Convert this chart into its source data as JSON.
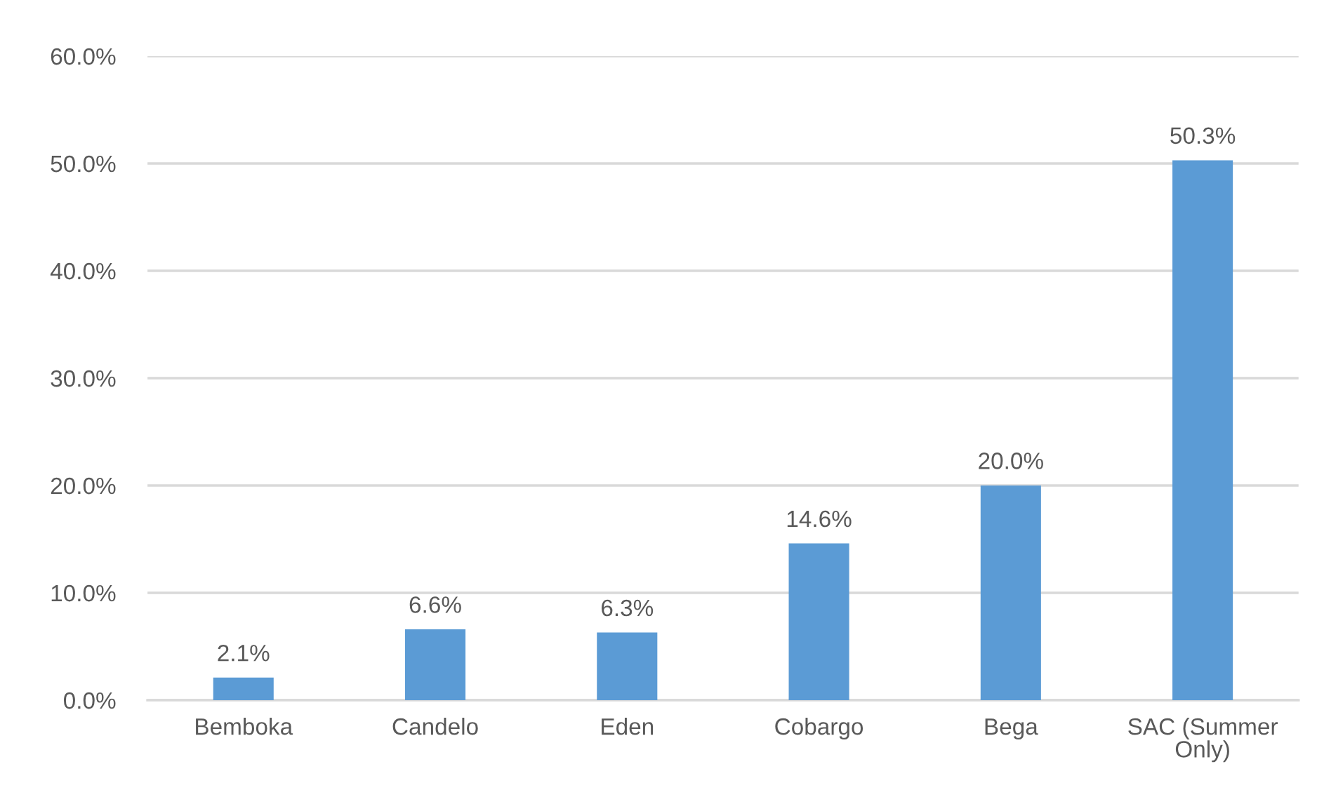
{
  "chart_data": {
    "type": "bar",
    "categories": [
      "Bemboka",
      "Candelo",
      "Eden",
      "Cobargo",
      "Bega",
      "SAC (Summer\nOnly)"
    ],
    "values": [
      2.1,
      6.6,
      6.3,
      14.6,
      20.0,
      50.3
    ],
    "value_labels": [
      "2.1%",
      "6.6%",
      "6.3%",
      "14.6%",
      "20.0%",
      "50.3%"
    ],
    "color": "#5b9bd5",
    "ylim": [
      0,
      60
    ],
    "yticks": [
      {
        "value": 0,
        "label": "0.0%"
      },
      {
        "value": 10,
        "label": "10.0%"
      },
      {
        "value": 20,
        "label": "20.0%"
      },
      {
        "value": 30,
        "label": "30.0%"
      },
      {
        "value": 40,
        "label": "40.0%"
      },
      {
        "value": 50,
        "label": "50.0%"
      },
      {
        "value": 60,
        "label": "60.0%"
      }
    ],
    "grid": "y",
    "legend": false
  }
}
